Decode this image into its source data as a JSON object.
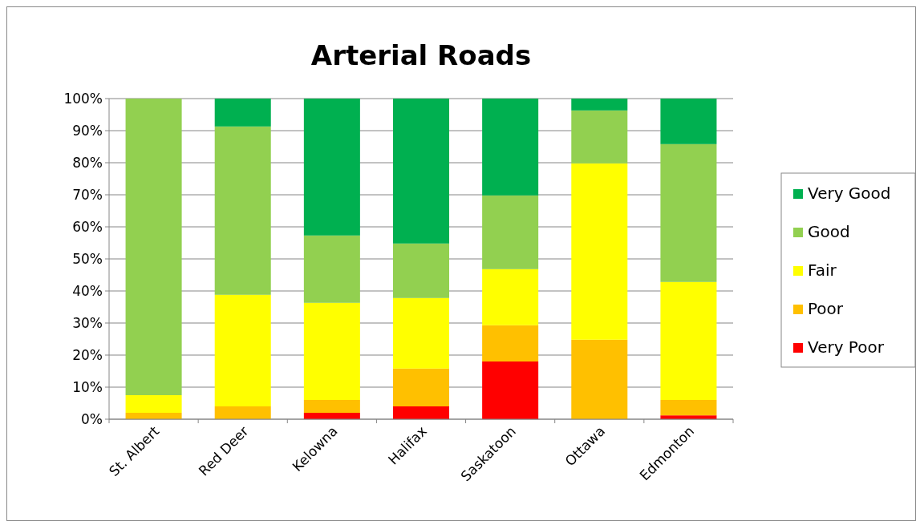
{
  "chart_data": {
    "type": "bar",
    "title": "Arterial Roads",
    "stacked": true,
    "grid": "y",
    "legend": "right",
    "categories": [
      "St. Albert",
      "Red Deer",
      "Kelowna",
      "Halifax",
      "Saskatoon",
      "Ottawa",
      "Edmonton"
    ],
    "ylim": [
      0,
      100
    ],
    "yticks": [
      {
        "value": 0,
        "label": "0%"
      },
      {
        "value": 10,
        "label": "10%"
      },
      {
        "value": 20,
        "label": "20%"
      },
      {
        "value": 30,
        "label": "30%"
      },
      {
        "value": 40,
        "label": "40%"
      },
      {
        "value": 50,
        "label": "50%"
      },
      {
        "value": 60,
        "label": "60%"
      },
      {
        "value": 70,
        "label": "70%"
      },
      {
        "value": 80,
        "label": "80%"
      },
      {
        "value": 90,
        "label": "90%"
      },
      {
        "value": 100,
        "label": "100%"
      }
    ],
    "series": [
      {
        "name": "Very Poor",
        "color": "#ff0000",
        "values": [
          0,
          0,
          2,
          4,
          18,
          0,
          1.2
        ]
      },
      {
        "name": "Poor",
        "color": "#ffc000",
        "values": [
          2,
          4,
          4,
          11.8,
          11.3,
          24.8,
          4.8
        ]
      },
      {
        "name": "Fair",
        "color": "#ffff00",
        "values": [
          5.5,
          34.8,
          30.3,
          22,
          17.5,
          55,
          36.8
        ]
      },
      {
        "name": "Good",
        "color": "#92d050",
        "values": [
          92.5,
          52.5,
          21,
          17,
          23,
          16.5,
          43
        ]
      },
      {
        "name": "Very Good",
        "color": "#00b050",
        "values": [
          0,
          8.7,
          42.7,
          45.2,
          30.2,
          3.7,
          14.2
        ]
      }
    ]
  }
}
